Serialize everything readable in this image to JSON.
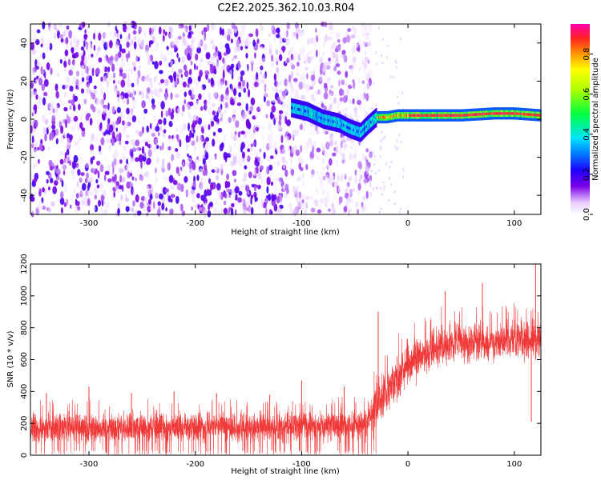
{
  "title": "C2E2.2025.362.10.03.R04",
  "chart_data": [
    {
      "type": "heatmap",
      "name": "spectrogram",
      "xlabel": "Height of straight line (km)",
      "ylabel": "Frequency (Hz)",
      "xlim": [
        -355,
        125
      ],
      "ylim": [
        -50,
        50
      ],
      "xticks": [
        -300,
        -200,
        -100,
        0,
        100
      ],
      "yticks": [
        -40,
        -20,
        0,
        20,
        40
      ],
      "colorbar": {
        "label": "Normalized spectral amplitude",
        "range": [
          0,
          0.95
        ],
        "ticks": [
          0.0,
          0.2,
          0.4,
          0.6,
          0.8
        ],
        "stops": [
          {
            "v": 0.0,
            "c": "#ffffff"
          },
          {
            "v": 0.06,
            "c": "#e6ccff"
          },
          {
            "v": 0.14,
            "c": "#7a00e6"
          },
          {
            "v": 0.22,
            "c": "#1f00ff"
          },
          {
            "v": 0.3,
            "c": "#0077ff"
          },
          {
            "v": 0.38,
            "c": "#00e5ff"
          },
          {
            "v": 0.5,
            "c": "#00ff40"
          },
          {
            "v": 0.62,
            "c": "#aaff00"
          },
          {
            "v": 0.72,
            "c": "#ffff00"
          },
          {
            "v": 0.8,
            "c": "#ff9900"
          },
          {
            "v": 0.88,
            "c": "#ff2222"
          },
          {
            "v": 0.95,
            "c": "#ff00aa"
          }
        ]
      },
      "noise_region_x": [
        -355,
        -35
      ],
      "signal_track": [
        {
          "x": -110,
          "y": 6
        },
        {
          "x": -95,
          "y": 4
        },
        {
          "x": -80,
          "y": 0
        },
        {
          "x": -65,
          "y": -2
        },
        {
          "x": -55,
          "y": -5
        },
        {
          "x": -45,
          "y": -7
        },
        {
          "x": -38,
          "y": -3
        },
        {
          "x": -30,
          "y": 1
        },
        {
          "x": -20,
          "y": 1
        },
        {
          "x": -10,
          "y": 2
        },
        {
          "x": 0,
          "y": 2
        },
        {
          "x": 20,
          "y": 2
        },
        {
          "x": 50,
          "y": 2
        },
        {
          "x": 80,
          "y": 3
        },
        {
          "x": 100,
          "y": 3
        },
        {
          "x": 125,
          "y": 2
        }
      ]
    },
    {
      "type": "line",
      "name": "snr",
      "xlabel": "Height of straight line (km)",
      "ylabel": "SNR (10 * v/v)",
      "xlim": [
        -355,
        125
      ],
      "ylim": [
        0,
        1200
      ],
      "xticks": [
        -300,
        -200,
        -100,
        0,
        100
      ],
      "yticks": [
        0,
        200,
        400,
        600,
        800,
        1000,
        1200
      ],
      "color": "#f03a3a",
      "envelope": [
        {
          "x": -355,
          "low": 40,
          "high": 300
        },
        {
          "x": -100,
          "low": 50,
          "high": 310
        },
        {
          "x": -40,
          "low": 60,
          "high": 330
        },
        {
          "x": -30,
          "low": 100,
          "high": 560
        },
        {
          "x": -20,
          "low": 200,
          "high": 620
        },
        {
          "x": 0,
          "low": 380,
          "high": 760
        },
        {
          "x": 20,
          "low": 470,
          "high": 840
        },
        {
          "x": 40,
          "low": 520,
          "high": 880
        },
        {
          "x": 80,
          "low": 540,
          "high": 870
        },
        {
          "x": 110,
          "low": 560,
          "high": 900
        },
        {
          "x": 125,
          "low": 550,
          "high": 880
        }
      ],
      "spikes": [
        {
          "x": -340,
          "y": 390
        },
        {
          "x": -300,
          "y": 430
        },
        {
          "x": -260,
          "y": 390
        },
        {
          "x": -220,
          "y": 400
        },
        {
          "x": -180,
          "y": 390
        },
        {
          "x": -130,
          "y": 380
        },
        {
          "x": -100,
          "y": 470
        },
        {
          "x": -60,
          "y": 430
        },
        {
          "x": -28,
          "y": 900
        },
        {
          "x": 35,
          "y": 1030
        },
        {
          "x": 70,
          "y": 1080
        },
        {
          "x": 120,
          "y": 1210
        },
        {
          "x": 116,
          "y": 210
        }
      ]
    }
  ]
}
